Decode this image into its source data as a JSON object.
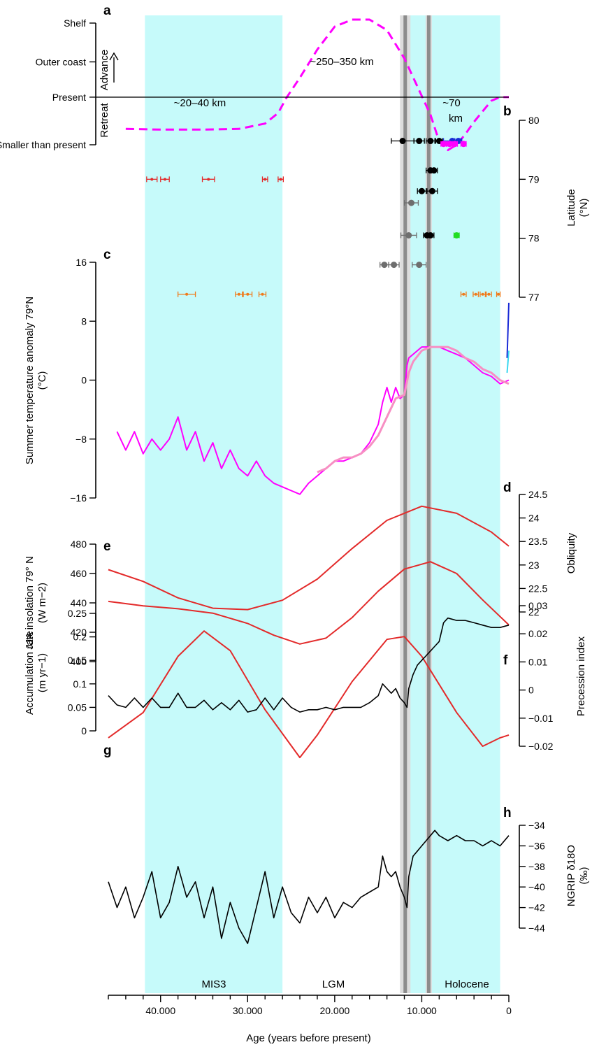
{
  "colors": {
    "cyan_band": "#c6fafa",
    "lines_grey": "#8c8c8c",
    "magenta": "#ff00ff",
    "pink": "#f78fc3",
    "red": "#e32a2a",
    "black": "#000000",
    "grey_points": "#6e6e6e",
    "orange": "#f07a1a",
    "green": "#22dd22",
    "blue": "#1a2bd6",
    "cyan_line": "#3cd8f0"
  },
  "chart_data": {
    "type": "line",
    "x_axis": {
      "label": "Age (years before present)",
      "range": [
        46000,
        0
      ],
      "ticks": [
        40000,
        30000,
        20000,
        10000,
        0
      ],
      "tick_labels": [
        "40.000",
        "30.000",
        "20.000",
        "10.000",
        "0"
      ]
    },
    "shaded_periods": [
      {
        "name": "MIS3",
        "start": 41800,
        "end": 26000
      },
      {
        "name": "LGM",
        "start": 26000,
        "end": 11700
      },
      {
        "name": "Holocene",
        "start": 11700,
        "end": 1000
      }
    ],
    "vertical_lines": [
      11900,
      9200
    ],
    "panels": [
      {
        "id": "a",
        "label": "a",
        "y_axis": {
          "type": "categorical",
          "ticks": [
            "Shelf",
            "Outer coast",
            "Present",
            "Smaller than present"
          ],
          "advance_label": "Advance",
          "retreat_label": "Retreat"
        },
        "annotations": [
          "~20–40 km",
          "~250–350 km",
          "~70",
          "km"
        ],
        "series": [
          {
            "style": "dashed",
            "color": "magenta",
            "x": [
              44000,
              40000,
              35000,
              31000,
              28000,
              26500,
              25500,
              24000,
              22000,
              20000,
              18000,
              16000,
              14000,
              12000,
              10500,
              9000,
              8000,
              7000,
              6000,
              5000,
              4000,
              3000,
              2000,
              1000,
              0
            ],
            "y": [
              -0.9,
              -0.92,
              -0.92,
              -0.9,
              -0.75,
              -0.45,
              0.0,
              0.55,
              1.35,
              2.0,
              2.2,
              2.2,
              1.9,
              1.1,
              0.3,
              -0.5,
              -1.25,
              -1.5,
              -1.35,
              -1.05,
              -0.7,
              -0.4,
              -0.1,
              0.0,
              0.0
            ]
          }
        ]
      },
      {
        "id": "b",
        "label": "b",
        "y_axis": {
          "label": "Latitude",
          "unit": "(°N)",
          "range": [
            77,
            80
          ],
          "ticks": [
            77,
            78,
            79,
            80
          ]
        },
        "point_rows": [
          {
            "color": "black",
            "lat": 79.65,
            "x": [
              12200,
              10300,
              9000,
              8000
            ],
            "err": [
              1300,
              600,
              500,
              400
            ]
          },
          {
            "color": "blue",
            "lat": 79.65,
            "x": [
              6500,
              5800
            ],
            "err": [
              1000,
              400
            ]
          },
          {
            "color": "magenta",
            "lat": 79.6,
            "x": [
              7500,
              6800,
              6200,
              5200
            ],
            "err": [
              300,
              300,
              300,
              300
            ]
          },
          {
            "color": "red",
            "lat": 79.0,
            "x": [
              41000,
              39500,
              34500,
              28000,
              26200
            ],
            "err": [
              600,
              500,
              700,
              300,
              300
            ]
          },
          {
            "color": "black",
            "lat": 79.15,
            "x": [
              9000,
              8600
            ],
            "err": [
              500,
              400
            ]
          },
          {
            "color": "black",
            "lat": 78.8,
            "x": [
              10000,
              8800
            ],
            "err": [
              500,
              600
            ]
          },
          {
            "color": "grey_points",
            "lat": 78.6,
            "x": [
              11200
            ],
            "err": [
              800
            ]
          },
          {
            "color": "grey_points",
            "lat": 78.05,
            "x": [
              11500
            ],
            "err": [
              900
            ]
          },
          {
            "color": "black",
            "lat": 78.05,
            "x": [
              9400,
              9000
            ],
            "err": [
              400,
              400
            ]
          },
          {
            "color": "green",
            "lat": 78.05,
            "x": [
              6000
            ],
            "err": [
              300
            ]
          },
          {
            "color": "grey_points",
            "lat": 77.55,
            "x": [
              14300,
              13200,
              10300
            ],
            "err": [
              500,
              600,
              800
            ]
          },
          {
            "color": "orange",
            "lat": 77.05,
            "x": [
              37000,
              31000,
              30000,
              28300
            ],
            "err": [
              1000,
              400,
              500,
              400
            ]
          },
          {
            "color": "orange",
            "lat": 77.05,
            "x": [
              5200,
              3800,
              3000,
              2300,
              1200
            ],
            "err": [
              300,
              300,
              300,
              300,
              200
            ]
          }
        ]
      },
      {
        "id": "c",
        "label": "c",
        "y_axis": {
          "label": "Summer temperature anomaly 79°N",
          "unit": "(°C)",
          "range": [
            -16,
            16
          ],
          "ticks": [
            -16,
            -8,
            0,
            8,
            16
          ]
        },
        "series": [
          {
            "color": "magenta",
            "x": [
              45000,
              44000,
              43000,
              42000,
              41000,
              40000,
              39000,
              38000,
              37000,
              36000,
              35000,
              34000,
              33000,
              32000,
              31000,
              30000,
              29000,
              28000,
              27000,
              26000,
              25000,
              24000,
              23000,
              22000,
              21000,
              20000,
              19000,
              18000,
              17000,
              16000,
              15000,
              14500,
              14000,
              13500,
              13000,
              12500,
              12000,
              11700,
              11500,
              11000,
              10500,
              10000,
              9500,
              9000,
              8000,
              7000,
              6000,
              5000,
              4000,
              3000,
              2000,
              1000,
              0
            ],
            "y": [
              -7,
              -9.5,
              -7,
              -10,
              -8,
              -9.5,
              -8,
              -5,
              -9.5,
              -7,
              -11,
              -8.5,
              -12,
              -9.5,
              -12,
              -13,
              -11,
              -13,
              -14,
              -14.5,
              -15,
              -15.5,
              -14,
              -13,
              -12,
              -11,
              -11,
              -10.5,
              -10,
              -8.5,
              -6,
              -3,
              -1,
              -3,
              -1,
              -2.5,
              -2,
              2,
              3,
              3.5,
              4,
              4.5,
              4.5,
              4.5,
              4.5,
              4,
              3.5,
              3,
              2,
              1,
              0.5,
              -0.5,
              0
            ]
          },
          {
            "color": "pink",
            "x": [
              22000,
              21000,
              20000,
              19000,
              18000,
              17000,
              16000,
              15000,
              14000,
              13000,
              12000,
              11500,
              11000,
              10000,
              9000,
              8000,
              7000,
              6000,
              5000,
              4000,
              3000,
              2000,
              1000,
              0
            ],
            "y": [
              -12.5,
              -12,
              -11,
              -10.5,
              -10.5,
              -10,
              -9,
              -7.5,
              -5,
              -2.5,
              -2,
              1,
              2.5,
              4,
              4.5,
              4.5,
              4.5,
              4,
              3,
              2.5,
              1.5,
              1,
              0,
              -0.5
            ]
          },
          {
            "color": "blue",
            "x": [
              200,
              0
            ],
            "y": [
              3,
              10.5
            ]
          },
          {
            "color": "cyan_line",
            "x": [
              200,
              0
            ],
            "y": [
              1,
              4
            ]
          }
        ]
      },
      {
        "id": "d",
        "label": "d",
        "y_axis": {
          "label": "Obliquity",
          "range": [
            22,
            24.5
          ],
          "ticks": [
            22,
            22.5,
            23,
            23.5,
            24,
            24.5
          ]
        },
        "series": [
          {
            "color": "red",
            "x": [
              46000,
              42000,
              38000,
              34000,
              30000,
              26000,
              22000,
              18000,
              14000,
              10000,
              6000,
              2000,
              0
            ],
            "y": [
              22.9,
              22.65,
              22.3,
              22.08,
              22.05,
              22.25,
              22.7,
              23.35,
              23.95,
              24.25,
              24.1,
              23.7,
              23.4
            ]
          }
        ]
      },
      {
        "id": "e",
        "label": "e",
        "y_axis": {
          "label": "JJA insolation 79° N",
          "unit": "(W m−2)",
          "range": [
            400,
            480
          ],
          "ticks": [
            400,
            420,
            440,
            460,
            480
          ]
        },
        "series": [
          {
            "color": "red",
            "x": [
              46000,
              42000,
              38000,
              34000,
              30000,
              27000,
              24000,
              21000,
              18000,
              15000,
              12000,
              9000,
              6000,
              3000,
              0
            ],
            "y": [
              441,
              438,
              436,
              433,
              426,
              418,
              412,
              416,
              430,
              448,
              463,
              468,
              460,
              442,
              425
            ]
          }
        ]
      },
      {
        "id": "f",
        "label": "f",
        "y_axis": {
          "label": "Precession index",
          "range": [
            -0.02,
            0.03
          ],
          "ticks": [
            -0.02,
            -0.01,
            0,
            0.01,
            0.02,
            0.03
          ]
        },
        "series": [
          {
            "color": "red",
            "x": [
              46000,
              42000,
              38000,
              35000,
              32000,
              28000,
              24000,
              22000,
              18000,
              14000,
              12000,
              10000,
              6000,
              3000,
              1000,
              0
            ],
            "y": [
              -0.017,
              -0.008,
              0.012,
              0.021,
              0.014,
              -0.007,
              -0.024,
              -0.016,
              0.003,
              0.018,
              0.019,
              0.012,
              -0.008,
              -0.02,
              -0.017,
              -0.016
            ]
          }
        ]
      },
      {
        "id": "g",
        "label": "g",
        "y_axis": {
          "label": "Accumulation rate",
          "unit": "(m yr−1)",
          "range": [
            0,
            0.25
          ],
          "ticks": [
            0,
            0.05,
            0.1,
            0.15,
            0.2,
            0.25
          ]
        },
        "series": [
          {
            "color": "black",
            "x": [
              46000,
              45000,
              44000,
              43000,
              42000,
              41000,
              40000,
              39000,
              38000,
              37000,
              36000,
              35000,
              34000,
              33000,
              32000,
              31000,
              30000,
              29000,
              28000,
              27000,
              26000,
              25000,
              24000,
              23000,
              22000,
              21000,
              20000,
              19000,
              18000,
              17000,
              16000,
              15000,
              14500,
              14000,
              13500,
              13000,
              12500,
              12000,
              11700,
              11500,
              11000,
              10500,
              10000,
              9500,
              9000,
              8500,
              8000,
              7500,
              7000,
              6000,
              5000,
              4000,
              3000,
              2000,
              1000,
              0
            ],
            "y": [
              0.075,
              0.055,
              0.05,
              0.07,
              0.05,
              0.07,
              0.05,
              0.05,
              0.08,
              0.05,
              0.05,
              0.065,
              0.045,
              0.06,
              0.045,
              0.065,
              0.04,
              0.045,
              0.07,
              0.045,
              0.07,
              0.05,
              0.04,
              0.045,
              0.045,
              0.05,
              0.045,
              0.05,
              0.05,
              0.05,
              0.06,
              0.075,
              0.1,
              0.09,
              0.08,
              0.09,
              0.07,
              0.06,
              0.05,
              0.09,
              0.12,
              0.14,
              0.15,
              0.16,
              0.17,
              0.18,
              0.19,
              0.23,
              0.24,
              0.235,
              0.235,
              0.23,
              0.225,
              0.22,
              0.22,
              0.225
            ]
          }
        ]
      },
      {
        "id": "h",
        "label": "h",
        "y_axis": {
          "label": "NGRIP δ18O",
          "unit": "(‰)",
          "range": [
            -44,
            -34
          ],
          "ticks": [
            -44,
            -42,
            -40,
            -38,
            -36,
            -34
          ]
        },
        "series": [
          {
            "color": "black",
            "x": [
              46000,
              45000,
              44000,
              43000,
              42000,
              41000,
              40000,
              39000,
              38000,
              37000,
              36000,
              35000,
              34000,
              33000,
              32000,
              31000,
              30000,
              29000,
              28000,
              27000,
              26000,
              25000,
              24000,
              23000,
              22000,
              21000,
              20000,
              19000,
              18000,
              17000,
              16000,
              15000,
              14500,
              14000,
              13500,
              13000,
              12500,
              12000,
              11700,
              11500,
              11000,
              10500,
              10000,
              9500,
              9000,
              8500,
              8000,
              7000,
              6000,
              5000,
              4000,
              3000,
              2000,
              1000,
              0
            ],
            "y": [
              -39.5,
              -42,
              -40,
              -43,
              -41,
              -38.5,
              -43,
              -41.5,
              -38,
              -41,
              -39.5,
              -43,
              -40,
              -45,
              -41.5,
              -44,
              -45.5,
              -42,
              -38.5,
              -43,
              -40,
              -42.5,
              -43.5,
              -41,
              -42.5,
              -41,
              -43,
              -41.5,
              -42,
              -41,
              -40.5,
              -40,
              -37,
              -38.5,
              -39,
              -38.5,
              -40,
              -41,
              -42,
              -39,
              -37,
              -36.5,
              -36,
              -35.5,
              -35,
              -34.5,
              -35,
              -35.5,
              -35,
              -35.5,
              -35.5,
              -36,
              -35.5,
              -36,
              -35
            ]
          }
        ]
      }
    ]
  }
}
